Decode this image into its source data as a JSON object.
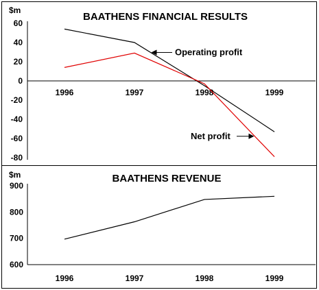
{
  "colors": {
    "operating": "#000000",
    "net": "#e00000",
    "revenue": "#000000",
    "frame": "#000000"
  },
  "chart_data": [
    {
      "type": "line",
      "title": "BAATHENS FINANCIAL RESULTS",
      "ylabel": "$m",
      "xlabel": "",
      "categories": [
        "1996",
        "1997",
        "1998",
        "1999"
      ],
      "yticks": [
        "60",
        "40",
        "20",
        "0",
        "-20",
        "-40",
        "-60",
        "-80"
      ],
      "ylim": [
        -80,
        60
      ],
      "grid": false,
      "series": [
        {
          "name": "Operating profit",
          "values": [
            54,
            40,
            -5,
            -53
          ]
        },
        {
          "name": "Net profit",
          "values": [
            14,
            29,
            -3,
            -79
          ]
        }
      ]
    },
    {
      "type": "line",
      "title": "BAATHENS REVENUE",
      "ylabel": "$m",
      "xlabel": "",
      "categories": [
        "1996",
        "1997",
        "1998",
        "1999"
      ],
      "yticks": [
        "900",
        "800",
        "700",
        "600"
      ],
      "ylim": [
        600,
        900
      ],
      "grid": false,
      "series": [
        {
          "values": [
            697,
            763,
            848,
            860
          ]
        }
      ]
    }
  ]
}
